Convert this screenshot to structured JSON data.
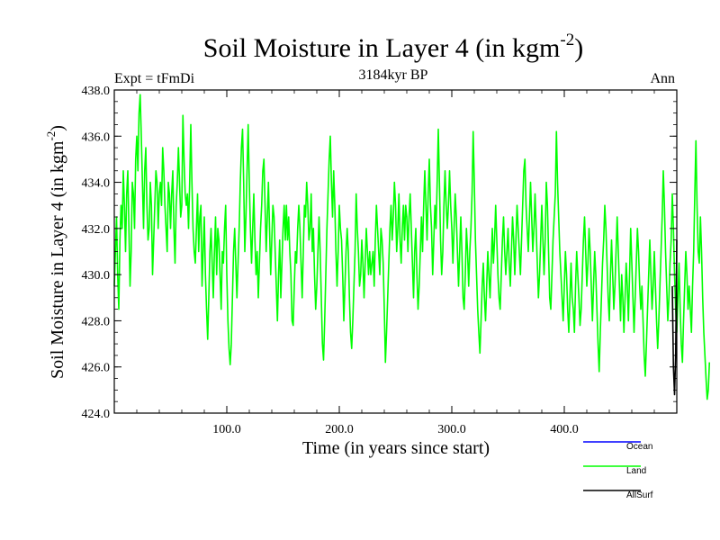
{
  "chart_data": {
    "type": "line",
    "title": "Soil Moisture in Layer 4 (in kgm",
    "title_sup": "-2",
    "title_close": ")",
    "subtitle_left": "Expt = tFmDi",
    "subtitle_center": "3184kyr BP",
    "subtitle_right": "Ann",
    "ylabel": "Soil Moisture in Layer 4 (in kgm",
    "ylabel_sup": "-2",
    "ylabel_close": ")",
    "xlabel": "Time (in years since start)",
    "xlim": [
      0,
      500
    ],
    "ylim": [
      424.0,
      438.0
    ],
    "x_ticks": [
      100,
      200,
      300,
      400
    ],
    "x_tick_labels": [
      "100.0",
      "200.0",
      "300.0",
      "400.0"
    ],
    "y_ticks": [
      424,
      426,
      428,
      430,
      432,
      434,
      436,
      438
    ],
    "y_tick_labels": [
      "424.0",
      "426.0",
      "428.0",
      "430.0",
      "432.0",
      "434.0",
      "436.0",
      "438.0"
    ],
    "legend": [
      {
        "name": "Ocean",
        "color": "#0000ff"
      },
      {
        "name": "Land",
        "color": "#00ff00"
      },
      {
        "name": "AllSurf",
        "color": "#000000"
      }
    ],
    "series": [
      {
        "name": "Land",
        "color": "#00ff00",
        "x_start": 0,
        "x_step": 1,
        "values": [
          429.5,
          431.0,
          432.5,
          430.0,
          428.5,
          431.5,
          433.0,
          432.0,
          434.5,
          433.0,
          431.0,
          433.5,
          434.5,
          432.0,
          429.5,
          431.0,
          434.0,
          433.5,
          432.0,
          435.0,
          436.0,
          434.5,
          437.0,
          437.8,
          436.0,
          434.0,
          432.0,
          434.5,
          435.5,
          433.0,
          431.5,
          432.0,
          434.0,
          433.0,
          430.0,
          431.5,
          433.0,
          434.5,
          434.0,
          432.0,
          433.5,
          434.0,
          433.0,
          435.5,
          434.5,
          433.0,
          432.0,
          431.0,
          434.0,
          433.5,
          432.0,
          433.5,
          434.5,
          432.0,
          430.5,
          433.0,
          434.0,
          435.5,
          434.0,
          432.5,
          433.0,
          436.9,
          435.0,
          433.5,
          433.0,
          433.5,
          432.0,
          434.0,
          436.5,
          434.0,
          432.0,
          431.0,
          430.5,
          432.0,
          433.5,
          431.0,
          432.5,
          433.0,
          429.5,
          431.0,
          432.5,
          430.0,
          428.5,
          427.2,
          429.0,
          431.0,
          432.0,
          430.5,
          429.0,
          431.0,
          432.5,
          430.0,
          432.0,
          431.5,
          430.0,
          428.5,
          431.0,
          430.5,
          432.0,
          433.0,
          430.0,
          428.0,
          426.8,
          426.1,
          427.0,
          429.0,
          431.0,
          432.0,
          430.5,
          429.0,
          430.5,
          432.0,
          434.0,
          435.5,
          436.3,
          434.0,
          431.0,
          432.5,
          434.5,
          436.5,
          434.0,
          432.0,
          430.5,
          432.0,
          433.5,
          431.5,
          430.0,
          431.0,
          429.0,
          430.5,
          432.0,
          433.0,
          434.5,
          435.0,
          433.0,
          431.0,
          432.5,
          434.0,
          432.0,
          430.0,
          431.5,
          433.0,
          432.5,
          431.0,
          429.5,
          428.0,
          430.0,
          431.5,
          429.0,
          430.5,
          432.0,
          433.0,
          431.5,
          433.0,
          431.5,
          432.5,
          431.0,
          430.0,
          428.0,
          427.8,
          429.5,
          431.0,
          430.5,
          432.0,
          433.0,
          432.0,
          430.5,
          429.0,
          431.0,
          433.0,
          432.5,
          434.0,
          433.0,
          431.5,
          432.0,
          433.5,
          431.0,
          432.0,
          430.0,
          428.5,
          429.5,
          431.0,
          432.5,
          431.0,
          429.0,
          427.0,
          426.3,
          428.0,
          430.0,
          432.0,
          433.5,
          435.0,
          436.0,
          434.0,
          432.5,
          434.5,
          433.0,
          431.0,
          429.5,
          431.0,
          433.0,
          432.0,
          431.5,
          430.0,
          428.0,
          429.5,
          431.0,
          432.0,
          431.0,
          429.0,
          427.5,
          426.8,
          428.0,
          429.5,
          431.0,
          433.5,
          432.0,
          431.0,
          429.5,
          430.0,
          431.5,
          430.5,
          429.0,
          430.5,
          432.0,
          431.0,
          430.0,
          431.0,
          430.0,
          430.5,
          431.0,
          429.5,
          431.5,
          433.0,
          432.0,
          431.0,
          430.0,
          432.0,
          431.5,
          430.5,
          428.5,
          426.2,
          427.5,
          429.0,
          430.5,
          432.0,
          433.0,
          431.5,
          432.5,
          434.0,
          433.0,
          431.0,
          432.0,
          433.5,
          431.5,
          430.5,
          432.0,
          433.0,
          431.5,
          433.0,
          432.5,
          431.0,
          432.5,
          433.5,
          432.0,
          430.5,
          429.0,
          431.0,
          432.0,
          430.0,
          428.5,
          429.5,
          431.0,
          432.5,
          431.0,
          433.0,
          434.5,
          433.0,
          431.5,
          433.5,
          435.0,
          433.0,
          432.0,
          430.0,
          431.5,
          433.0,
          432.0,
          434.0,
          436.3,
          434.0,
          431.5,
          430.0,
          431.0,
          433.0,
          434.5,
          433.0,
          432.0,
          433.0,
          434.5,
          433.0,
          432.0,
          430.5,
          432.0,
          433.5,
          432.5,
          431.0,
          429.5,
          431.0,
          432.5,
          431.0,
          429.0,
          428.5,
          430.0,
          432.0,
          431.0,
          429.5,
          431.0,
          432.0,
          433.5,
          436.2,
          434.0,
          431.5,
          430.0,
          428.5,
          427.5,
          426.6,
          428.0,
          429.5,
          430.5,
          429.0,
          428.0,
          429.5,
          431.0,
          430.0,
          429.0,
          430.5,
          432.0,
          430.5,
          431.5,
          433.0,
          431.5,
          430.0,
          429.0,
          428.5,
          430.0,
          431.5,
          432.5,
          431.0,
          430.0,
          431.0,
          432.0,
          430.5,
          429.5,
          431.0,
          432.5,
          431.5,
          430.0,
          431.5,
          433.0,
          432.0,
          431.0,
          430.0,
          431.5,
          433.0,
          434.5,
          435.0,
          433.0,
          432.0,
          431.0,
          432.5,
          434.0,
          432.5,
          431.0,
          432.0,
          433.5,
          432.0,
          430.5,
          429.0,
          430.0,
          431.5,
          433.0,
          431.5,
          430.0,
          431.5,
          434.0,
          433.0,
          431.0,
          429.0,
          428.5,
          430.0,
          431.5,
          432.5,
          433.5,
          436.2,
          434.0,
          432.5,
          431.0,
          430.0,
          429.0,
          428.0,
          429.5,
          431.0,
          430.0,
          428.5,
          427.5,
          429.0,
          430.5,
          429.0,
          428.5,
          427.5,
          429.5,
          431.0,
          430.0,
          429.0,
          427.8,
          428.5,
          430.0,
          431.5,
          432.5,
          431.0,
          429.5,
          430.5,
          432.0,
          431.0,
          429.5,
          428.0,
          429.5,
          431.0,
          430.0,
          428.5,
          427.0,
          425.8,
          427.5,
          429.0,
          430.5,
          431.5,
          433.0,
          432.0,
          430.5,
          429.0,
          428.0,
          430.0,
          431.5,
          430.0,
          428.5,
          429.5,
          431.0,
          432.5,
          431.0,
          429.5,
          428.0,
          430.0,
          429.0,
          427.5,
          429.0,
          430.5,
          429.5,
          428.0,
          430.0,
          432.0,
          430.5,
          429.0,
          427.5,
          429.0,
          430.5,
          432.0,
          431.0,
          429.5,
          428.5,
          429.5,
          428.0,
          426.5,
          425.6,
          427.0,
          428.5,
          430.0,
          431.5,
          430.0,
          428.5,
          429.5,
          431.0,
          429.5,
          428.0,
          426.8,
          428.0,
          429.5,
          431.0,
          432.5,
          434.5,
          433.0,
          431.0,
          429.5,
          428.0,
          429.0,
          430.5,
          431.5,
          433.5,
          432.0,
          430.0,
          428.5,
          427.5,
          429.0,
          430.5,
          428.5,
          427.0,
          426.2,
          428.0,
          429.5,
          431.0,
          430.0,
          428.5,
          429.5,
          428.5,
          427.5,
          429.5,
          431.0,
          433.5,
          435.8,
          433.0,
          431.0,
          430.5,
          432.5,
          431.0,
          429.0,
          427.5,
          426.5,
          425.5,
          424.6,
          425.0,
          426.2
        ]
      },
      {
        "name": "AllSurf",
        "color": "#000000",
        "x_start": 496,
        "x_step": 1,
        "values": [
          429.5,
          426.0,
          424.8,
          426.5,
          431.5
        ]
      }
    ]
  }
}
